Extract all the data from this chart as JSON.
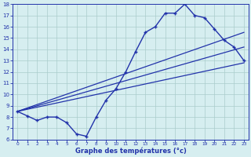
{
  "xlabel": "Graphe des températures (°c)",
  "bg_color": "#d6eef0",
  "line_color": "#2233aa",
  "grid_color": "#aacccc",
  "hours": [
    0,
    1,
    2,
    3,
    4,
    5,
    6,
    7,
    8,
    9,
    10,
    11,
    12,
    13,
    14,
    15,
    16,
    17,
    18,
    19,
    20,
    21,
    22,
    23
  ],
  "temp_main": [
    8.5,
    8.1,
    7.7,
    8.0,
    8.0,
    7.5,
    6.5,
    6.3,
    8.0,
    9.5,
    10.5,
    12.0,
    13.8,
    15.5,
    16.0,
    17.2,
    17.2,
    18.0,
    17.0,
    16.8,
    15.8,
    14.8,
    14.2,
    13.0
  ],
  "trend1_x": [
    0,
    23
  ],
  "trend1_y": [
    8.5,
    12.8
  ],
  "trend2_x": [
    0,
    23
  ],
  "trend2_y": [
    8.5,
    15.5
  ],
  "trend3_x": [
    0,
    23
  ],
  "trend3_y": [
    8.5,
    14.2
  ],
  "ylim": [
    6,
    18
  ],
  "yticks": [
    6,
    7,
    8,
    9,
    10,
    11,
    12,
    13,
    14,
    15,
    16,
    17,
    18
  ],
  "xticks": [
    0,
    1,
    2,
    3,
    4,
    5,
    6,
    7,
    8,
    9,
    10,
    11,
    12,
    13,
    14,
    15,
    16,
    17,
    18,
    19,
    20,
    21,
    22,
    23
  ]
}
